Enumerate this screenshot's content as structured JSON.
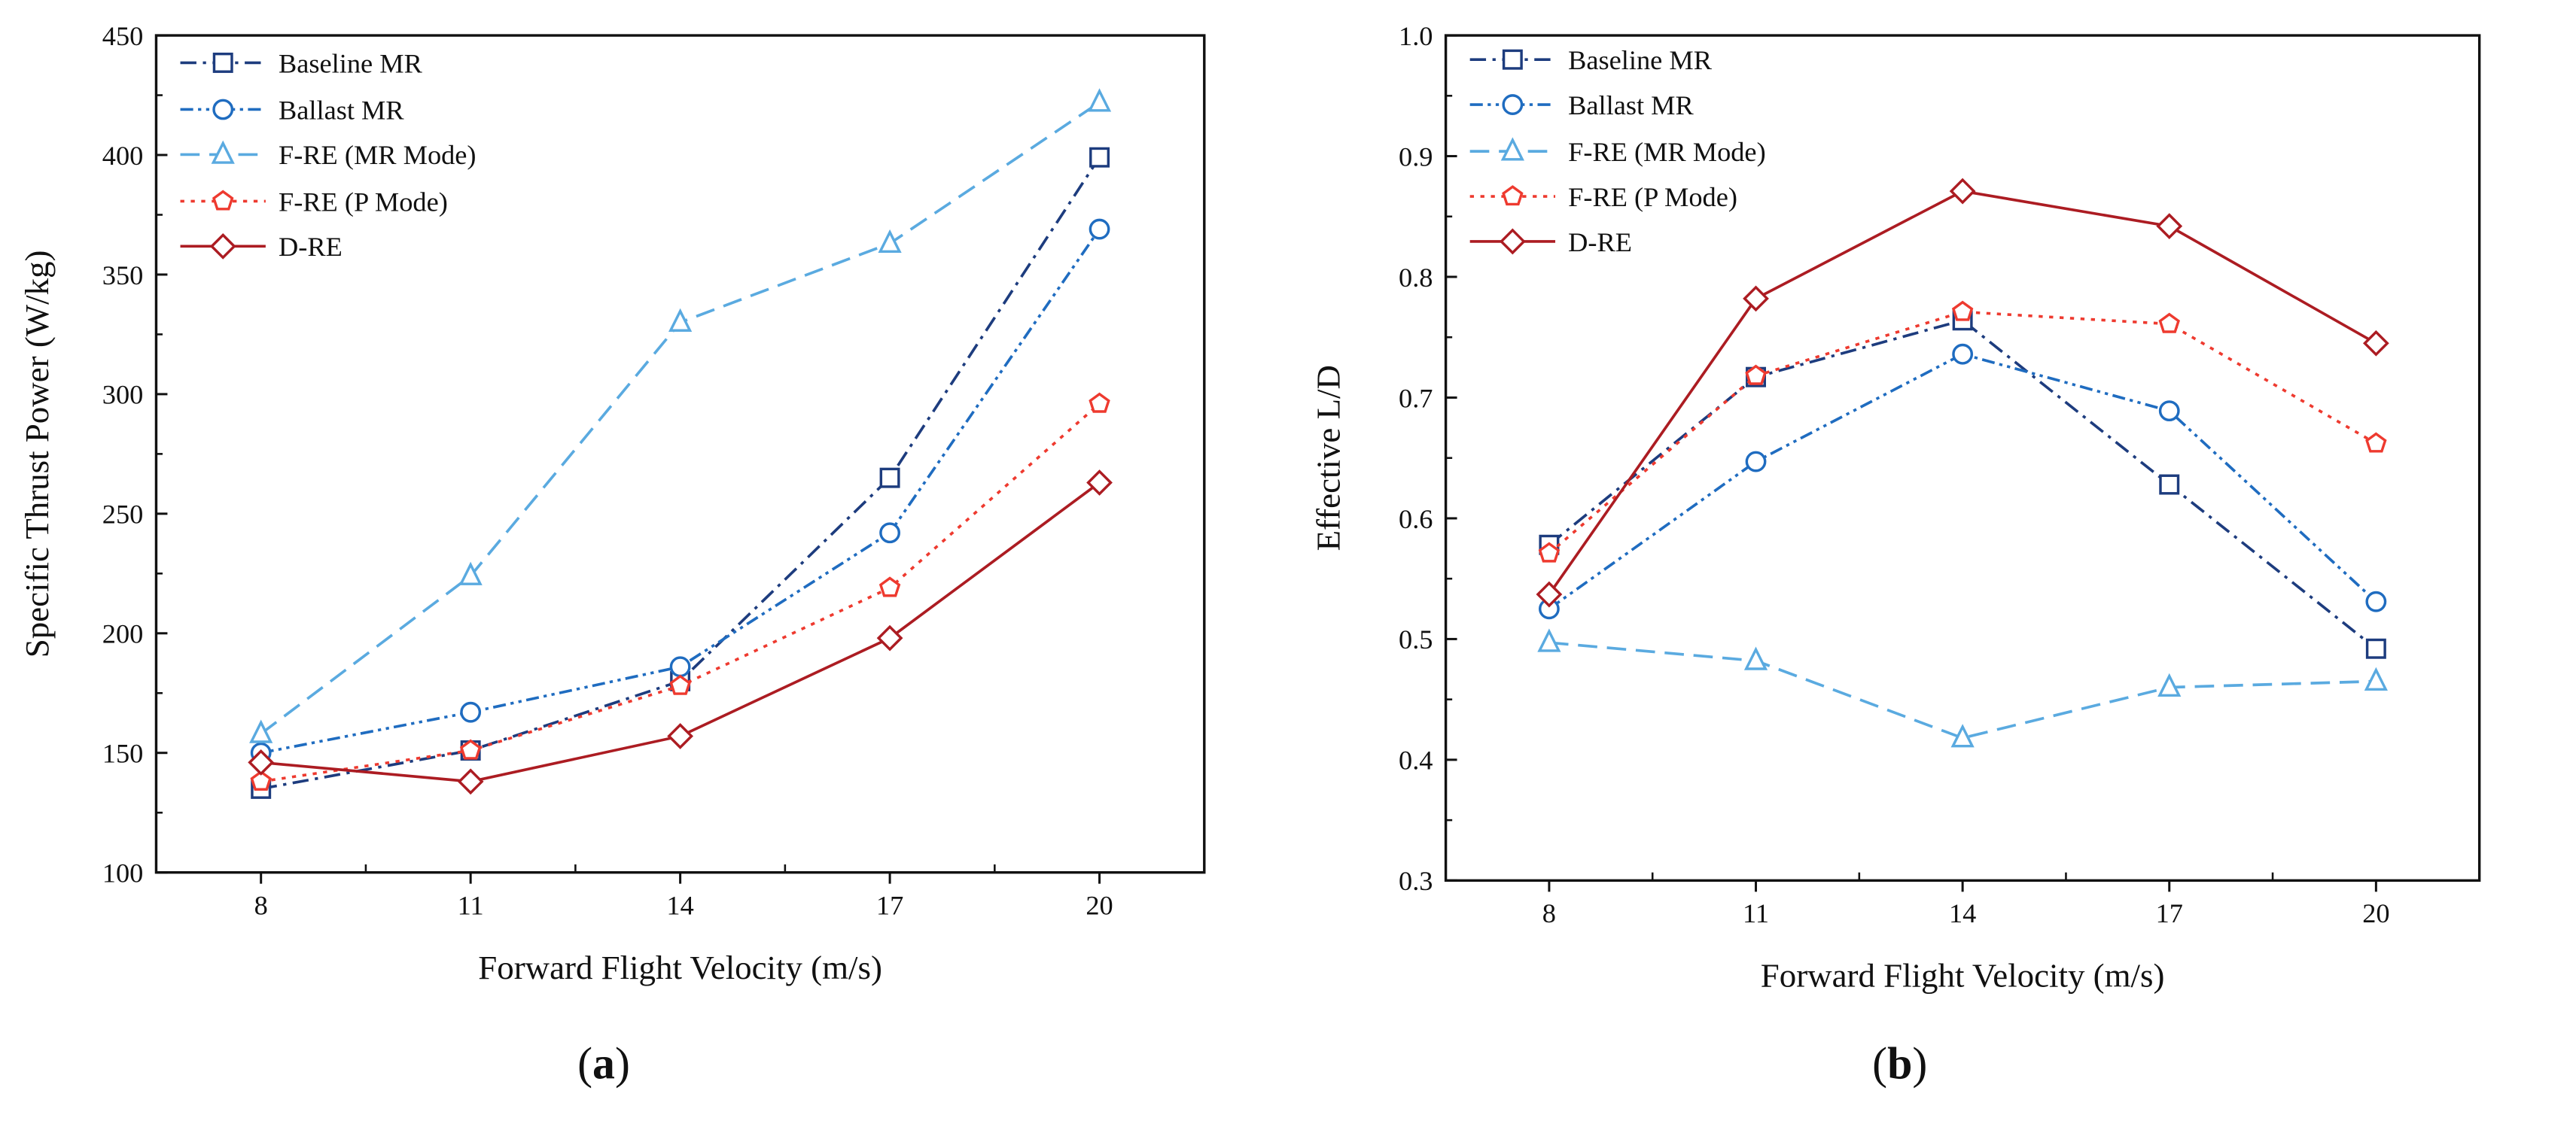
{
  "colors": {
    "Baseline MR": "#1d3c7e",
    "Ballast MR": "#1f6cc0",
    "F-RE (MR Mode)": "#5aaae0",
    "F-RE (P Mode)": "#ee3a2f",
    "D-RE": "#ac1c22"
  },
  "chart_data": [
    {
      "type": "line",
      "caption_open": "(",
      "caption_letter": "a",
      "caption_close": ")",
      "xlabel": "Forward Flight Velocity (m/s)",
      "ylabel": "Specific Thrust Power (W/kg)",
      "x": [
        8,
        11,
        14,
        17,
        20
      ],
      "xticks": [
        "8",
        "11",
        "14",
        "17",
        "20"
      ],
      "xlim": [
        6.5,
        21.5
      ],
      "ylim": [
        100,
        450
      ],
      "yticks": [
        "100",
        "150",
        "200",
        "250",
        "300",
        "350",
        "400",
        "450"
      ],
      "grid": false,
      "legend_position": "top-left",
      "series": [
        {
          "name": "Baseline MR",
          "marker": "square",
          "line": "dash-dot",
          "values": [
            135,
            151,
            180,
            265,
            399
          ]
        },
        {
          "name": "Ballast MR",
          "marker": "circle",
          "line": "dash-dot-dot",
          "values": [
            150,
            167,
            186,
            242,
            369
          ]
        },
        {
          "name": "F-RE (MR Mode)",
          "marker": "triangle",
          "line": "dashed",
          "values": [
            158,
            224,
            330,
            363,
            422
          ]
        },
        {
          "name": "F-RE (P Mode)",
          "marker": "pentagon",
          "line": "dotted",
          "values": [
            138,
            151,
            178,
            219,
            296
          ]
        },
        {
          "name": "D-RE",
          "marker": "diamond",
          "line": "solid",
          "values": [
            146,
            138,
            157,
            198,
            263
          ]
        }
      ]
    },
    {
      "type": "line",
      "caption_open": "(",
      "caption_letter": "b",
      "caption_close": ")",
      "xlabel": "Forward Flight Velocity (m/s)",
      "ylabel": "Effective L/D",
      "x": [
        8,
        11,
        14,
        17,
        20
      ],
      "xticks": [
        "8",
        "11",
        "14",
        "17",
        "20"
      ],
      "xlim": [
        6.5,
        21.5
      ],
      "ylim": [
        0.3,
        1.0
      ],
      "yticks": [
        "0.3",
        "0.4",
        "0.5",
        "0.6",
        "0.7",
        "0.8",
        "0.9",
        "1.0"
      ],
      "grid": false,
      "legend_position": "top-left",
      "series": [
        {
          "name": "Baseline MR",
          "marker": "square",
          "line": "dash-dot",
          "values": [
            0.578,
            0.717,
            0.764,
            0.628,
            0.492
          ]
        },
        {
          "name": "Ballast MR",
          "marker": "circle",
          "line": "dash-dot-dot",
          "values": [
            0.525,
            0.647,
            0.736,
            0.689,
            0.531
          ]
        },
        {
          "name": "F-RE (MR Mode)",
          "marker": "triangle",
          "line": "dashed",
          "values": [
            0.497,
            0.482,
            0.418,
            0.46,
            0.465
          ]
        },
        {
          "name": "F-RE (P Mode)",
          "marker": "pentagon",
          "line": "dotted",
          "values": [
            0.571,
            0.718,
            0.771,
            0.761,
            0.662
          ]
        },
        {
          "name": "D-RE",
          "marker": "diamond",
          "line": "solid",
          "values": [
            0.537,
            0.782,
            0.871,
            0.842,
            0.745
          ]
        }
      ]
    }
  ]
}
